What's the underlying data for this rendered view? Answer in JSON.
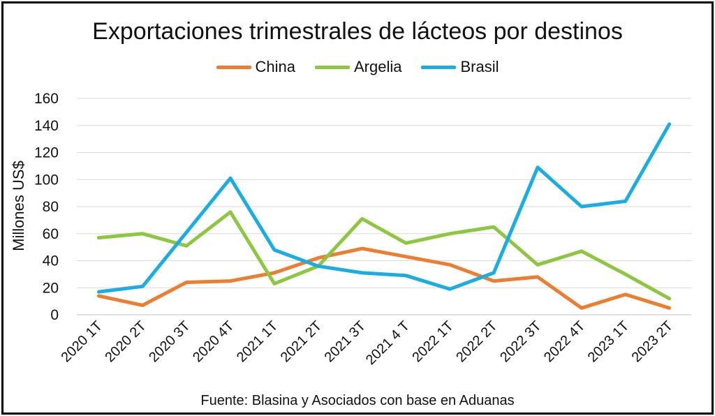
{
  "chart_data": {
    "type": "line",
    "title": "Exportaciones trimestrales de lácteos por destinos",
    "ylabel": "Millones US$",
    "xlabel": "",
    "source": "Fuente: Blasina y Asociados con base en Aduanas",
    "ylim": [
      0,
      160
    ],
    "yticks": [
      "0",
      "20",
      "40",
      "60",
      "80",
      "100",
      "120",
      "140",
      "160"
    ],
    "grid": true,
    "legend_position": "top-center",
    "categories": [
      "2020 1T",
      "2020 2T",
      "2020 3T",
      "2020 4T",
      "2021 1T",
      "2021 2T",
      "2021 3T",
      "2021 4 T",
      "2022 1T",
      "2022 2T",
      "2022 3T",
      "2022 4T",
      "2023 1T",
      "2023 2T"
    ],
    "series": [
      {
        "name": "China",
        "color": "#ED7D31",
        "values": [
          14,
          7,
          24,
          25,
          31,
          42,
          49,
          43,
          37,
          25,
          28,
          5,
          15,
          5
        ]
      },
      {
        "name": "Argelia",
        "color": "#8DC63F",
        "values": [
          57,
          60,
          51,
          76,
          23,
          36,
          71,
          53,
          60,
          65,
          37,
          47,
          30,
          12
        ]
      },
      {
        "name": "Brasil",
        "color": "#1AADE4",
        "values": [
          17,
          21,
          61,
          101,
          48,
          36,
          31,
          29,
          19,
          31,
          109,
          80,
          84,
          141
        ]
      }
    ]
  }
}
